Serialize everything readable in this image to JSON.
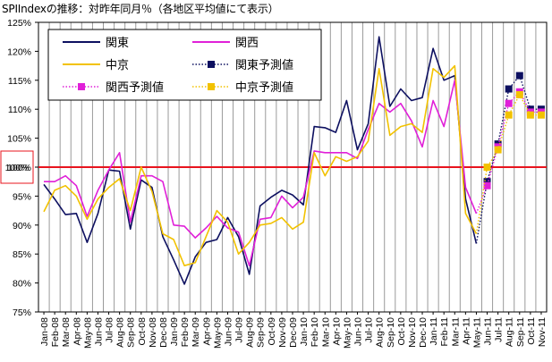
{
  "chart_data": {
    "type": "line",
    "title": "SPIIndexの推移：対昨年同月％（各地区平均値にて表示）",
    "xlabel": "",
    "ylabel": "",
    "ylim": [
      75,
      125
    ],
    "yticks": [
      "75%",
      "80%",
      "85%",
      "90%",
      "95%",
      "100%",
      "105%",
      "110%",
      "115%",
      "120%",
      "125%"
    ],
    "reference_line": {
      "value": 100,
      "label": "100%",
      "color": "#e8141e"
    },
    "grid": "vertical",
    "legend_position": "top-left",
    "categories": [
      "Jan-08",
      "Feb-08",
      "Mar-08",
      "Apr-08",
      "May-08",
      "Jun-08",
      "Jul-08",
      "Aug-08",
      "Sep-08",
      "Oct-08",
      "Nov-08",
      "Dec-08",
      "Jan-09",
      "Feb-09",
      "Mar-09",
      "Apr-09",
      "May-09",
      "Jun-09",
      "Jul-09",
      "Aug-09",
      "Sep-09",
      "Oct-09",
      "Nov-09",
      "Dec-09",
      "Jan-10",
      "Feb-10",
      "Mar-10",
      "Apr-10",
      "May-10",
      "Jun-10",
      "Jul-10",
      "Aug-10",
      "Sep-10",
      "Oct-10",
      "Nov-10",
      "Dec-10",
      "Jan-11",
      "Feb-11",
      "Mar-11",
      "Apr-11",
      "May-11",
      "Jun-11",
      "Jul-11",
      "Aug-11",
      "Sep-11",
      "Oct-11",
      "Nov-11"
    ],
    "series": [
      {
        "name": "関東",
        "color": "#0d1060",
        "style": "line",
        "values": [
          97.0,
          94.5,
          91.8,
          92.0,
          87.0,
          92.0,
          99.5,
          99.3,
          89.3,
          97.8,
          96.5,
          88.0,
          84.0,
          79.8,
          84.5,
          87.0,
          87.5,
          91.3,
          88.0,
          81.5,
          93.3,
          94.8,
          96.0,
          95.2,
          93.5,
          107.0,
          106.8,
          106.0,
          111.5,
          103.0,
          107.5,
          122.5,
          110.5,
          113.5,
          111.5,
          112.0,
          120.5,
          115.0,
          115.8,
          94.5,
          86.8,
          null,
          null,
          null,
          null,
          null,
          null
        ]
      },
      {
        "name": "関西",
        "color": "#e020d8",
        "style": "line",
        "values": [
          97.5,
          97.5,
          98.5,
          96.8,
          91.5,
          96.0,
          99.5,
          102.5,
          90.5,
          98.5,
          98.5,
          97.5,
          90.0,
          89.8,
          87.8,
          89.5,
          91.5,
          89.5,
          88.8,
          83.0,
          91.0,
          91.3,
          95.0,
          93.0,
          94.8,
          102.8,
          102.5,
          102.5,
          102.5,
          101.5,
          106.5,
          111.0,
          109.5,
          111.0,
          108.0,
          103.5,
          111.5,
          107.0,
          115.0,
          96.5,
          92.0,
          null,
          null,
          null,
          null,
          null,
          null
        ]
      },
      {
        "name": "中京",
        "color": "#f2c200",
        "style": "line",
        "values": [
          92.3,
          96.0,
          96.8,
          95.0,
          91.0,
          94.5,
          96.5,
          98.0,
          92.5,
          100.0,
          95.8,
          88.5,
          87.5,
          83.0,
          83.5,
          88.0,
          92.5,
          90.5,
          85.0,
          87.0,
          90.0,
          90.3,
          91.3,
          89.3,
          90.5,
          102.5,
          98.5,
          101.8,
          101.0,
          101.8,
          104.5,
          117.0,
          105.5,
          107.0,
          107.5,
          106.0,
          117.0,
          115.5,
          117.5,
          92.0,
          88.5,
          null,
          null,
          null,
          null,
          null,
          null
        ]
      },
      {
        "name": "関東予測値",
        "color": "#0d1060",
        "style": "dotted-marker",
        "values": [
          null,
          null,
          null,
          null,
          null,
          null,
          null,
          null,
          null,
          null,
          null,
          null,
          null,
          null,
          null,
          null,
          null,
          null,
          null,
          null,
          null,
          null,
          null,
          null,
          null,
          null,
          null,
          null,
          null,
          null,
          null,
          null,
          null,
          null,
          null,
          null,
          null,
          null,
          null,
          null,
          86.8,
          97.5,
          104.0,
          113.5,
          115.8,
          110.0,
          110.0
        ]
      },
      {
        "name": "関西予測値",
        "color": "#e020d8",
        "style": "dotted-marker",
        "values": [
          null,
          null,
          null,
          null,
          null,
          null,
          null,
          null,
          null,
          null,
          null,
          null,
          null,
          null,
          null,
          null,
          null,
          null,
          null,
          null,
          null,
          null,
          null,
          null,
          null,
          null,
          null,
          null,
          null,
          null,
          null,
          null,
          null,
          null,
          null,
          null,
          null,
          null,
          null,
          null,
          92.0,
          96.8,
          103.5,
          111.0,
          113.0,
          109.5,
          109.5
        ]
      },
      {
        "name": "中京予測値",
        "color": "#f2c200",
        "style": "dotted-marker",
        "values": [
          null,
          null,
          null,
          null,
          null,
          null,
          null,
          null,
          null,
          null,
          null,
          null,
          null,
          null,
          null,
          null,
          null,
          null,
          null,
          null,
          null,
          null,
          null,
          null,
          null,
          null,
          null,
          null,
          null,
          null,
          null,
          null,
          null,
          null,
          null,
          null,
          null,
          null,
          null,
          null,
          88.5,
          100.0,
          103.0,
          109.0,
          112.5,
          109.0,
          109.0
        ]
      }
    ]
  }
}
